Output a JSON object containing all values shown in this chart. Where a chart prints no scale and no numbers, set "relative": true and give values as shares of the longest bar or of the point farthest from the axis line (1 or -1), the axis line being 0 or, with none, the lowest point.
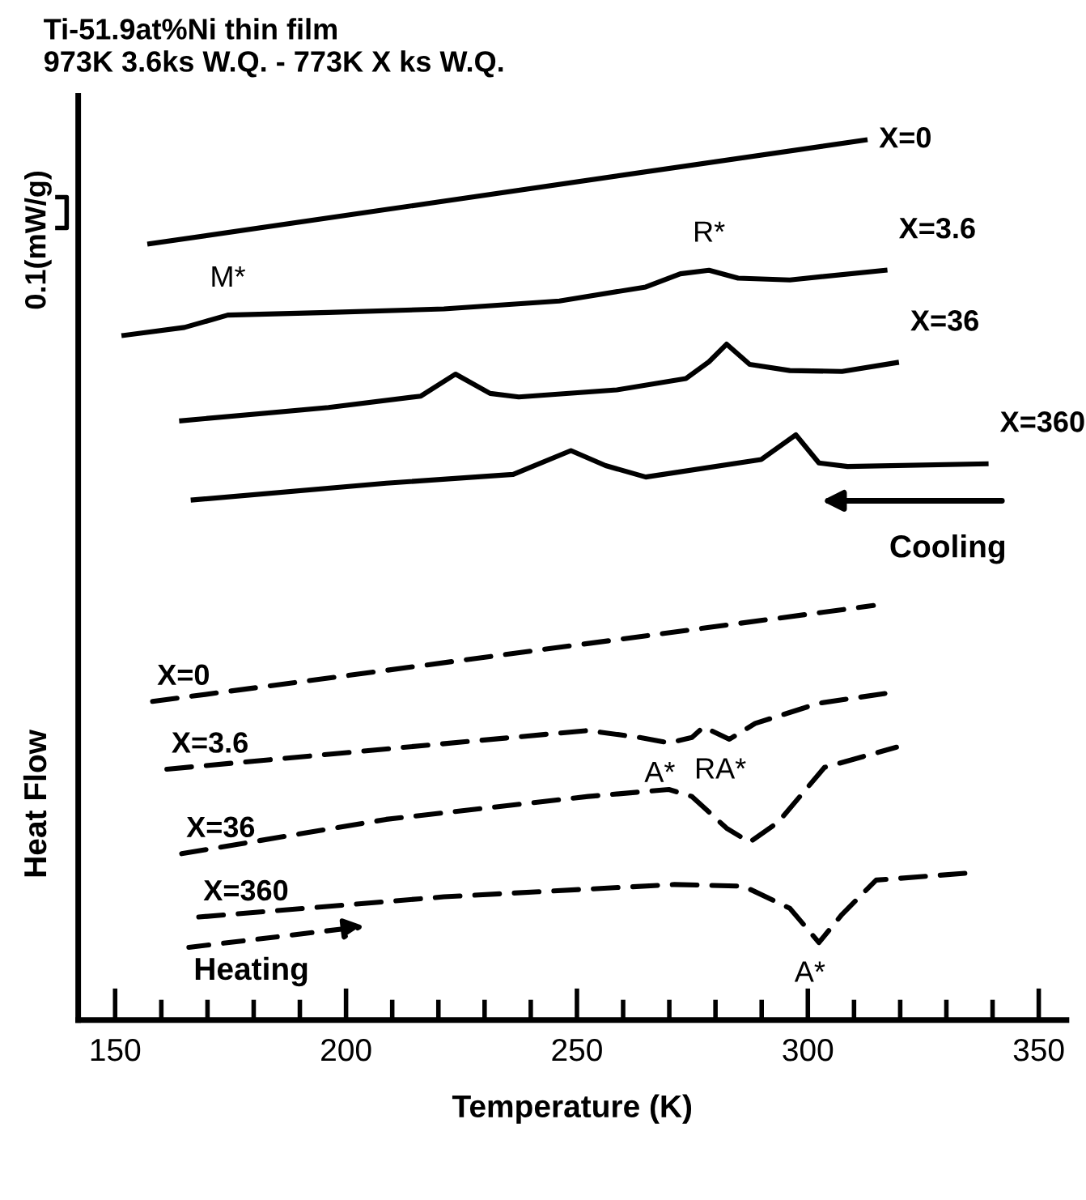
{
  "chart_data": {
    "type": "line",
    "relative": true,
    "title": "Ti-51.9at%Ni thin film",
    "subtitle": "973K 3.6ks W.Q. - 773K X ks W.Q.",
    "xlabel": "Temperature (K)",
    "ylabel": "Heat Flow",
    "xlim": [
      142,
      356
    ],
    "xticks": [
      150,
      {
        "value": 160,
        "label": null
      },
      {
        "value": 170,
        "label": null
      },
      {
        "value": 180,
        "label": null
      },
      {
        "value": 190,
        "label": null
      },
      200,
      {
        "value": 210,
        "label": null
      },
      {
        "value": 220,
        "label": null
      },
      {
        "value": 230,
        "label": null
      },
      {
        "value": 240,
        "label": null
      },
      250,
      {
        "value": 260,
        "label": null
      },
      {
        "value": 270,
        "label": null
      },
      {
        "value": 280,
        "label": null
      },
      {
        "value": 290,
        "label": null
      },
      300,
      {
        "value": 310,
        "label": null
      },
      {
        "value": 320,
        "label": null
      },
      {
        "value": 330,
        "label": null
      },
      {
        "value": 340,
        "label": null
      },
      350
    ],
    "grid": false,
    "legend": false,
    "marker": "none",
    "series": [
      {
        "name": "X=0",
        "color": "#000000",
        "line_style": "solid",
        "x": [
          157.5,
          312.4
        ],
        "values": [
          0.882,
          1.0
        ]
      },
      {
        "name": "X=3.6",
        "color": "#000000",
        "line_style": "solid",
        "x": [
          151.9,
          165.0,
          174.4,
          196.2,
          221.2,
          246.2,
          264.9,
          272.4,
          278.6,
          284.9,
          296.1,
          316.7
        ],
        "values": [
          0.778,
          0.787,
          0.801,
          0.804,
          0.808,
          0.817,
          0.833,
          0.848,
          0.852,
          0.843,
          0.841,
          0.852
        ]
      },
      {
        "name": "X=36",
        "color": "#000000",
        "line_style": "solid",
        "x": [
          164.4,
          196.2,
          216.2,
          223.7,
          231.2,
          237.4,
          258.6,
          273.6,
          278.6,
          282.4,
          287.4,
          296.1,
          307.4,
          319.2
        ],
        "values": [
          0.681,
          0.696,
          0.709,
          0.734,
          0.712,
          0.708,
          0.716,
          0.729,
          0.748,
          0.768,
          0.745,
          0.738,
          0.737,
          0.747
        ]
      },
      {
        "name": "X=360",
        "color": "#000000",
        "line_style": "solid",
        "x": [
          166.9,
          208.7,
          236.2,
          248.7,
          256.2,
          264.9,
          289.9,
          297.4,
          302.4,
          308.6,
          338.6
        ],
        "values": [
          0.591,
          0.61,
          0.62,
          0.647,
          0.63,
          0.617,
          0.637,
          0.665,
          0.633,
          0.629,
          0.632
        ]
      },
      {
        "name": "X=0",
        "color": "#000000",
        "line_style": "dashed",
        "x": [
          158.1,
          314.2
        ],
        "values": [
          0.362,
          0.471
        ]
      },
      {
        "name": "X=3.6",
        "color": "#000000",
        "line_style": "dashed",
        "x": [
          161.2,
          208.7,
          252.4,
          263.6,
          269.9,
          274.9,
          277.4,
          283.0,
          288.6,
          302.4,
          316.7
        ],
        "values": [
          0.285,
          0.308,
          0.329,
          0.321,
          0.315,
          0.321,
          0.333,
          0.319,
          0.337,
          0.36,
          0.371
        ]
      },
      {
        "name": "X=36",
        "color": "#000000",
        "line_style": "dashed",
        "x": [
          164.4,
          208.7,
          252.4,
          269.9,
          274.9,
          282.4,
          287.4,
          293.6,
          303.6,
          319.2
        ],
        "values": [
          0.189,
          0.228,
          0.254,
          0.262,
          0.254,
          0.218,
          0.202,
          0.225,
          0.287,
          0.31
        ]
      },
      {
        "name": "X=360",
        "color": "#000000",
        "line_style": "dashed",
        "x": [
          168.1,
          221.2,
          271.1,
          286.1,
          296.1,
          302.4,
          307.4,
          314.8,
          334.8
        ],
        "values": [
          0.117,
          0.14,
          0.154,
          0.152,
          0.127,
          0.088,
          0.12,
          0.159,
          0.167
        ]
      }
    ],
    "annotations": [
      {
        "text": "M*",
        "x": 174.4,
        "y": 0.801
      },
      {
        "text": "R*",
        "x": 278.6,
        "y": 0.852
      },
      {
        "text": "A*",
        "x": 269.9,
        "y": 0.315
      },
      {
        "text": "RA*",
        "x": 283.0,
        "y": 0.319
      },
      {
        "text": "A*",
        "x": 302.4,
        "y": 0.088
      },
      "Cooling",
      "Heating",
      "0.1(mW/g)"
    ]
  }
}
